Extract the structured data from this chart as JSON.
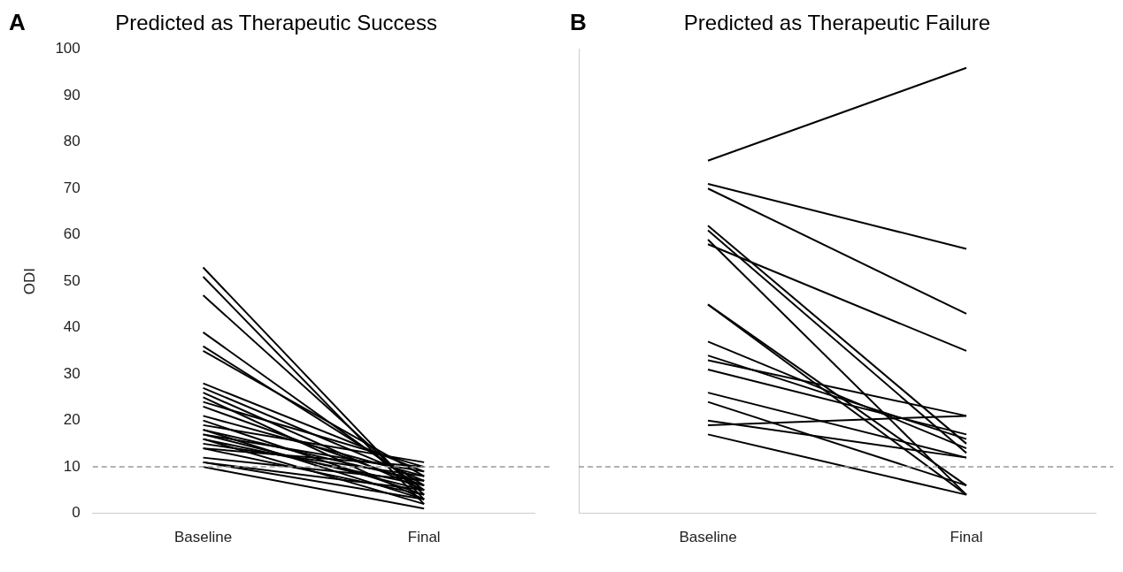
{
  "chart_data": [
    {
      "type": "line",
      "title": "Predicted as Therapeutic Success",
      "ylabel": "ODI",
      "annotations": [
        "A"
      ],
      "categories": [
        "Baseline",
        "Final"
      ],
      "ylim": [
        0,
        100
      ],
      "yticks": [
        0,
        10,
        20,
        30,
        40,
        50,
        60,
        70,
        80,
        90,
        100
      ],
      "grid": false,
      "legend": false,
      "marker": "none",
      "line_style": "solid",
      "ref_lines": [
        {
          "axis": "y",
          "value": 10,
          "color": "#999999",
          "line_style": "dashed"
        }
      ],
      "series": [
        {
          "color": "#000000",
          "values": [
            53,
            3
          ]
        },
        {
          "color": "#000000",
          "values": [
            51,
            2
          ]
        },
        {
          "color": "#000000",
          "values": [
            47,
            4
          ]
        },
        {
          "color": "#000000",
          "values": [
            39,
            5
          ]
        },
        {
          "color": "#000000",
          "values": [
            36,
            6
          ]
        },
        {
          "color": "#000000",
          "values": [
            35,
            8
          ]
        },
        {
          "color": "#000000",
          "values": [
            28,
            9
          ]
        },
        {
          "color": "#000000",
          "values": [
            27,
            7
          ]
        },
        {
          "color": "#000000",
          "values": [
            26,
            5
          ]
        },
        {
          "color": "#000000",
          "values": [
            25,
            3
          ]
        },
        {
          "color": "#000000",
          "values": [
            24,
            10
          ]
        },
        {
          "color": "#000000",
          "values": [
            23,
            6
          ]
        },
        {
          "color": "#000000",
          "values": [
            21,
            8
          ]
        },
        {
          "color": "#000000",
          "values": [
            20,
            4
          ]
        },
        {
          "color": "#000000",
          "values": [
            19,
            11
          ]
        },
        {
          "color": "#000000",
          "values": [
            18,
            7
          ]
        },
        {
          "color": "#000000",
          "values": [
            18,
            3
          ]
        },
        {
          "color": "#000000",
          "values": [
            17,
            9
          ]
        },
        {
          "color": "#000000",
          "values": [
            17,
            5
          ]
        },
        {
          "color": "#000000",
          "values": [
            16,
            6
          ]
        },
        {
          "color": "#000000",
          "values": [
            16,
            2
          ]
        },
        {
          "color": "#000000",
          "values": [
            15,
            8
          ]
        },
        {
          "color": "#000000",
          "values": [
            14,
            4
          ]
        },
        {
          "color": "#000000",
          "values": [
            14,
            10
          ]
        },
        {
          "color": "#000000",
          "values": [
            12,
            7
          ]
        },
        {
          "color": "#000000",
          "values": [
            11,
            5
          ]
        },
        {
          "color": "#000000",
          "values": [
            11,
            3
          ]
        },
        {
          "color": "#000000",
          "values": [
            10,
            1
          ]
        }
      ]
    },
    {
      "type": "line",
      "title": "Predicted as Therapeutic Failure",
      "annotations": [
        "B"
      ],
      "categories": [
        "Baseline",
        "Final"
      ],
      "ylim": [
        0,
        100
      ],
      "tick_labels": "x",
      "grid": false,
      "legend": false,
      "marker": "none",
      "line_style": "solid",
      "ref_lines": [
        {
          "axis": "y",
          "value": 10,
          "color": "#999999",
          "line_style": "dashed"
        }
      ],
      "series": [
        {
          "color": "#000000",
          "values": [
            76,
            96
          ]
        },
        {
          "color": "#000000",
          "values": [
            71,
            57
          ]
        },
        {
          "color": "#000000",
          "values": [
            70,
            43
          ]
        },
        {
          "color": "#000000",
          "values": [
            62,
            15
          ]
        },
        {
          "color": "#000000",
          "values": [
            61,
            13
          ]
        },
        {
          "color": "#000000",
          "values": [
            59,
            4
          ]
        },
        {
          "color": "#000000",
          "values": [
            58,
            35
          ]
        },
        {
          "color": "#000000",
          "values": [
            45,
            6
          ]
        },
        {
          "color": "#000000",
          "values": [
            45,
            4
          ]
        },
        {
          "color": "#000000",
          "values": [
            37,
            14
          ]
        },
        {
          "color": "#000000",
          "values": [
            34,
            16
          ]
        },
        {
          "color": "#000000",
          "values": [
            33,
            21
          ]
        },
        {
          "color": "#000000",
          "values": [
            31,
            17
          ]
        },
        {
          "color": "#000000",
          "values": [
            26,
            12
          ]
        },
        {
          "color": "#000000",
          "values": [
            24,
            6
          ]
        },
        {
          "color": "#000000",
          "values": [
            20,
            12
          ]
        },
        {
          "color": "#000000",
          "values": [
            19,
            21
          ]
        },
        {
          "color": "#000000",
          "values": [
            17,
            4
          ]
        }
      ]
    }
  ]
}
